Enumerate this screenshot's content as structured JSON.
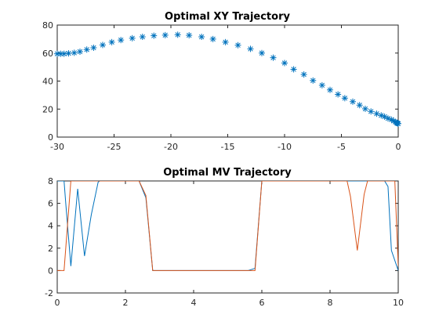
{
  "chart_data": [
    {
      "type": "scatter",
      "title": "Optimal XY Trajectory",
      "xlabel": "",
      "ylabel": "",
      "xlim": [
        -30,
        0
      ],
      "ylim": [
        0,
        80
      ],
      "xticks": [
        -30,
        -25,
        -20,
        -15,
        -10,
        -5,
        0
      ],
      "yticks": [
        0,
        20,
        40,
        60,
        80
      ],
      "grid": false,
      "marker": "asterisk",
      "color": "#0072BD",
      "series": [
        {
          "x": [
            -30,
            -29.7,
            -29.4,
            -29,
            -28.5,
            -28,
            -27.4,
            -26.8,
            -26,
            -25.2,
            -24.4,
            -23.4,
            -22.5,
            -21.5,
            -20.5,
            -19.4,
            -18.4,
            -17.3,
            -16.3,
            -15.2,
            -14.1,
            -13,
            -12,
            -11,
            -10,
            -9.2,
            -8.3,
            -7.5,
            -6.7,
            -6,
            -5.3,
            -4.7,
            -4,
            -3.4,
            -2.9,
            -2.4,
            -1.9,
            -1.5,
            -1.2,
            -0.9,
            -0.6,
            -0.4,
            -0.25,
            -0.15,
            -0.1,
            -0.05,
            0
          ],
          "y": [
            59.5,
            59.5,
            59.5,
            59.8,
            60.2,
            61,
            62.5,
            63.8,
            65.8,
            67.8,
            69.3,
            70.6,
            71.6,
            72.4,
            72.8,
            73.1,
            72.7,
            71.6,
            70,
            67.8,
            65.6,
            63,
            60,
            56.7,
            52.9,
            48.4,
            44.7,
            40.4,
            37,
            33.7,
            30.5,
            27.8,
            25.3,
            22.8,
            20.2,
            18.3,
            16.7,
            15.5,
            14.6,
            13.3,
            12.5,
            11.5,
            10.8,
            10.3,
            10,
            9.8,
            9.6
          ]
        }
      ]
    },
    {
      "type": "line",
      "title": "Optimal MV Trajectory",
      "xlabel": "",
      "ylabel": "",
      "xlim": [
        0,
        10
      ],
      "ylim": [
        -2,
        8
      ],
      "xticks": [
        0,
        2,
        4,
        6,
        8,
        10
      ],
      "yticks": [
        -2,
        0,
        2,
        4,
        6,
        8
      ],
      "grid": false,
      "series": [
        {
          "color": "#0072BD",
          "x": [
            0,
            0.2,
            0.25,
            0.4,
            0.6,
            0.8,
            1.0,
            1.2,
            1.25,
            2.4,
            2.6,
            2.8,
            5.6,
            5.8,
            6.0,
            8.5,
            8.6,
            8.7,
            8.8,
            8.9,
            9.0,
            9.6,
            9.7,
            9.8,
            10.0
          ],
          "y": [
            8,
            8,
            6,
            0.4,
            7.3,
            1.3,
            5,
            7.9,
            8,
            8,
            6.5,
            0,
            0,
            0.2,
            8,
            8,
            8,
            8,
            8,
            8,
            8,
            8,
            7.5,
            1.8,
            0
          ]
        },
        {
          "color": "#D95319",
          "x": [
            0,
            0.2,
            0.4,
            0.41,
            2.4,
            2.6,
            2.8,
            5.6,
            5.8,
            6.0,
            8.5,
            8.6,
            8.8,
            9.0,
            9.1,
            9.8,
            9.9,
            10.0
          ],
          "y": [
            0,
            0,
            8,
            8,
            8,
            6.7,
            0,
            0,
            0,
            8,
            8,
            6.6,
            1.8,
            6.8,
            8,
            8,
            8,
            0.4
          ]
        }
      ]
    }
  ]
}
